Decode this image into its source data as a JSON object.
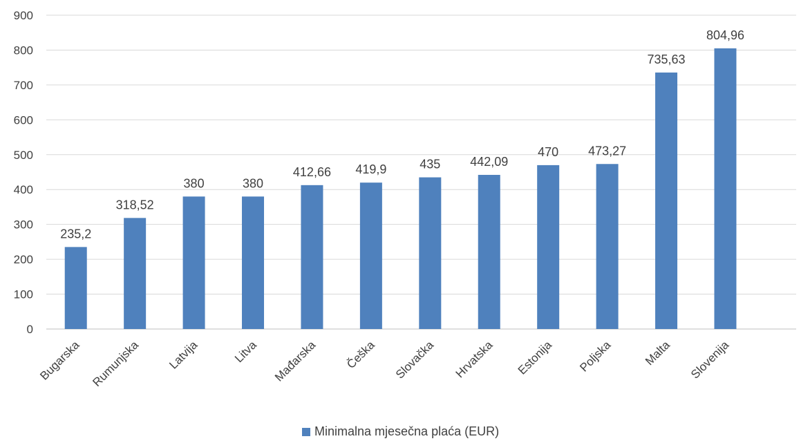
{
  "chart_data": {
    "type": "bar",
    "categories": [
      "Bugarska",
      "Rumunjska",
      "Latvija",
      "Litva",
      "Mađarska",
      "Češka",
      "Slovačka",
      "Hrvatska",
      "Estonija",
      "Poljska",
      "Malta",
      "Slovenija"
    ],
    "series": [
      {
        "name": "Minimalna mjesečna plaća (EUR)",
        "values": [
          235.2,
          318.52,
          380,
          380,
          412.66,
          419.9,
          435,
          442.09,
          470,
          473.27,
          735.63,
          804.96
        ],
        "labels": [
          "235,2",
          "318,52",
          "380",
          "380",
          "412,66",
          "419,9",
          "435",
          "442,09",
          "470",
          "473,27",
          "735,63",
          "804,96"
        ],
        "color": "#4f81bd"
      }
    ],
    "y_ticks": [
      0,
      100,
      200,
      300,
      400,
      500,
      600,
      700,
      800,
      900
    ],
    "ylim": [
      0,
      900
    ],
    "grid": true,
    "legend_position": "bottom",
    "gridline_color": "#d9d9d9",
    "axis_color": "#bfbfbf"
  }
}
